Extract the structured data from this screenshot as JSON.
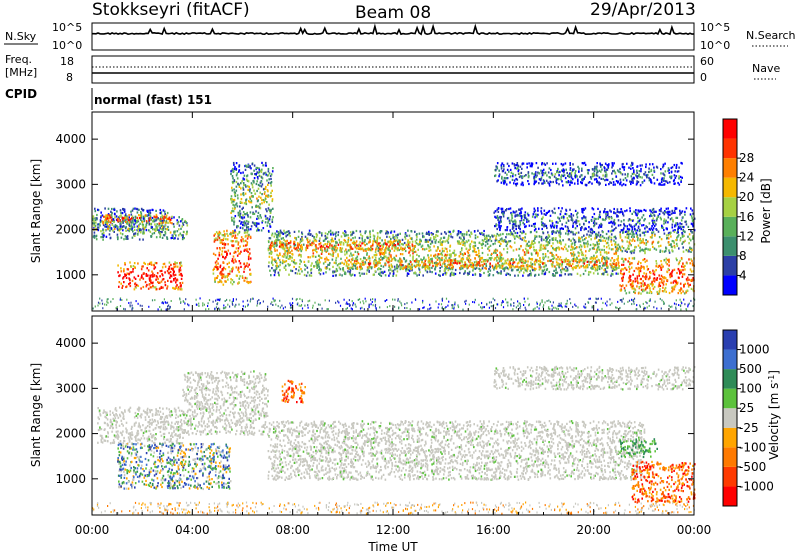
{
  "header": {
    "station": "Stokkseyri (fitACF)",
    "beam": "Beam 08",
    "date": "29/Apr/2013"
  },
  "strip_labels": {
    "nsky": "N.Sky",
    "nsky_ticks": [
      "10^5",
      "10^0"
    ],
    "nsearch": "N.Search",
    "freq": "Freq.",
    "freq_unit": "[MHz]",
    "freq_ticks": [
      "18",
      "8"
    ],
    "nave": "Nave",
    "nave_ticks": [
      "60",
      "0"
    ],
    "cpid_label": "CPID",
    "cpid_value": "normal (fast) 151"
  },
  "colors": {
    "power_scale": [
      "#0000ff",
      "#2c3fa6",
      "#3c8f6e",
      "#59b05a",
      "#a6d143",
      "#f5b800",
      "#ff7f00",
      "#ff3300",
      "#ff0000"
    ],
    "velocity_scale": [
      "#2a3fb0",
      "#3d6fd0",
      "#2e8b57",
      "#5cc23c",
      "#c8c8c0",
      "#ffa500",
      "#ff7a00",
      "#ff3a00",
      "#ff0000"
    ],
    "ground_scatter": "#b0b0a8"
  },
  "chart_data": [
    {
      "type": "line",
      "name": "N.Sky",
      "x_range_hours": [
        0,
        24
      ],
      "ylabel": "N.Sky",
      "scale": "log",
      "y_range": [
        "10^0",
        "10^5"
      ],
      "description_values": "near-constant high level with small spikes"
    },
    {
      "type": "line",
      "name": "Freq.",
      "ylabel": "Freq. [MHz]",
      "y_range_left": [
        8,
        18
      ],
      "y_range_right": [
        0,
        60
      ],
      "x_range_hours": [
        0,
        24
      ]
    },
    {
      "type": "heatmap",
      "name": "Power",
      "xlabel": "",
      "ylabel": "Slant Range [km]",
      "x_ticks": [
        "00:00",
        "04:00",
        "08:00",
        "12:00",
        "16:00",
        "20:00",
        "00:00"
      ],
      "x_range_hours": [
        0,
        24
      ],
      "y_ticks": [
        "1000",
        "2000",
        "3000",
        "4000"
      ],
      "y_range": [
        200,
        4600
      ],
      "colorbar_label": "Power [dB]",
      "colorbar_ticks": [
        "4",
        "8",
        "12",
        "16",
        "20",
        "24",
        "28"
      ],
      "colorbar_range": [
        0,
        32
      ],
      "bands": [
        {
          "t0": 0.0,
          "t1": 3.0,
          "r0": 2000,
          "r1": 2500,
          "level": 0.4
        },
        {
          "t0": 0.0,
          "t1": 3.8,
          "r0": 1800,
          "r1": 2300,
          "level": 0.5
        },
        {
          "t0": 0.4,
          "t1": 3.2,
          "r0": 2150,
          "r1": 2350,
          "level": 0.9
        },
        {
          "t0": 1.0,
          "t1": 3.6,
          "r0": 700,
          "r1": 1300,
          "level": 1.0
        },
        {
          "t0": 4.8,
          "t1": 6.3,
          "r0": 800,
          "r1": 2000,
          "level": 0.9
        },
        {
          "t0": 5.5,
          "t1": 7.2,
          "r0": 2000,
          "r1": 3500,
          "level": 0.5
        },
        {
          "t0": 7.0,
          "t1": 21.0,
          "r0": 1000,
          "r1": 2000,
          "level": 0.6
        },
        {
          "t0": 7.0,
          "t1": 13.0,
          "r0": 1550,
          "r1": 1800,
          "level": 0.85
        },
        {
          "t0": 10.0,
          "t1": 21.0,
          "r0": 1150,
          "r1": 1400,
          "level": 0.8
        },
        {
          "t0": 16.0,
          "t1": 24.0,
          "r0": 2000,
          "r1": 2500,
          "level": 0.3
        },
        {
          "t0": 16.0,
          "t1": 23.5,
          "r0": 3000,
          "r1": 3500,
          "level": 0.3
        },
        {
          "t0": 21.0,
          "t1": 24.0,
          "r0": 1500,
          "r1": 2000,
          "level": 0.6
        },
        {
          "t0": 21.0,
          "t1": 24.0,
          "r0": 600,
          "r1": 1400,
          "level": 0.9
        }
      ]
    },
    {
      "type": "heatmap",
      "name": "Velocity",
      "xlabel": "Time UT",
      "ylabel": "Slant Range [km]",
      "x_ticks": [
        "00:00",
        "04:00",
        "08:00",
        "12:00",
        "16:00",
        "20:00",
        "00:00"
      ],
      "x_range_hours": [
        0,
        24
      ],
      "y_ticks": [
        "1000",
        "2000",
        "3000",
        "4000"
      ],
      "y_range": [
        200,
        4600
      ],
      "colorbar_label": "Velocity [m s^-1]",
      "colorbar_ticks": [
        "1000",
        "500",
        "100",
        "25",
        "-25",
        "-100",
        "-500",
        "-1000"
      ],
      "bands": [
        {
          "t0": 0.2,
          "t1": 3.6,
          "r0": 1800,
          "r1": 2600,
          "kind": "ground"
        },
        {
          "t0": 3.6,
          "t1": 7.0,
          "r0": 2000,
          "r1": 3400,
          "kind": "ground"
        },
        {
          "t0": 7.0,
          "t1": 22.0,
          "r0": 1000,
          "r1": 2300,
          "kind": "ground"
        },
        {
          "t0": 16.0,
          "t1": 24.0,
          "r0": 3000,
          "r1": 3500,
          "kind": "ground"
        },
        {
          "t0": 1.0,
          "t1": 5.5,
          "r0": 800,
          "r1": 1800,
          "kind": "mixed"
        },
        {
          "t0": 21.5,
          "t1": 24.0,
          "r0": 500,
          "r1": 1400,
          "kind": "away"
        },
        {
          "t0": 7.5,
          "t1": 8.5,
          "r0": 2700,
          "r1": 3200,
          "kind": "away"
        },
        {
          "t0": 21.0,
          "t1": 22.5,
          "r0": 1500,
          "r1": 1900,
          "kind": "toward"
        }
      ]
    }
  ]
}
